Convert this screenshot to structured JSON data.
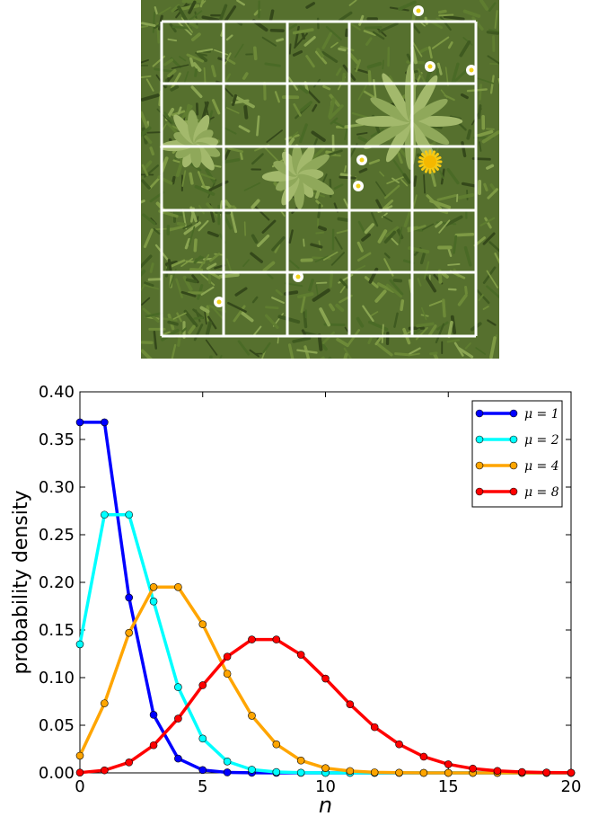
{
  "photo": {
    "subject": "quadrat grid over grass with daisies and dandelion"
  },
  "chart_data": {
    "type": "line",
    "xlabel": "n",
    "ylabel": "probability density",
    "xlim": [
      0,
      20
    ],
    "ylim": [
      0,
      0.4
    ],
    "x_ticks": [
      "0",
      "5",
      "10",
      "15",
      "20"
    ],
    "y_ticks": [
      "0.00",
      "0.05",
      "0.10",
      "0.15",
      "0.20",
      "0.25",
      "0.30",
      "0.35",
      "0.40"
    ],
    "legend_position": "top-right",
    "x": [
      0,
      1,
      2,
      3,
      4,
      5,
      6,
      7,
      8,
      9,
      10,
      11,
      12,
      13,
      14,
      15,
      16,
      17,
      18,
      19,
      20
    ],
    "series": [
      {
        "name": "μ = 1",
        "color": "#0000ff",
        "values": [
          0.368,
          0.368,
          0.184,
          0.061,
          0.015,
          0.003,
          0.0005,
          0.0001,
          0,
          0,
          0,
          0,
          0,
          0,
          0,
          0,
          0,
          0,
          0,
          0,
          0
        ]
      },
      {
        "name": "μ = 2",
        "color": "#00ffff",
        "values": [
          0.135,
          0.271,
          0.271,
          0.18,
          0.09,
          0.036,
          0.012,
          0.0034,
          0.0009,
          0.0002,
          0,
          0,
          0,
          0,
          0,
          0,
          0,
          0,
          0,
          0,
          0
        ]
      },
      {
        "name": "μ = 4",
        "color": "#ffa500",
        "values": [
          0.018,
          0.073,
          0.147,
          0.195,
          0.195,
          0.156,
          0.104,
          0.06,
          0.03,
          0.013,
          0.005,
          0.002,
          0.0006,
          0.0002,
          0,
          0,
          0,
          0,
          0,
          0,
          0
        ]
      },
      {
        "name": "μ = 8",
        "color": "#ff0000",
        "values": [
          0.0003,
          0.0027,
          0.011,
          0.029,
          0.057,
          0.092,
          0.122,
          0.14,
          0.14,
          0.124,
          0.099,
          0.072,
          0.048,
          0.03,
          0.017,
          0.009,
          0.0045,
          0.0021,
          0.0009,
          0.0004,
          0.0002
        ]
      }
    ]
  }
}
